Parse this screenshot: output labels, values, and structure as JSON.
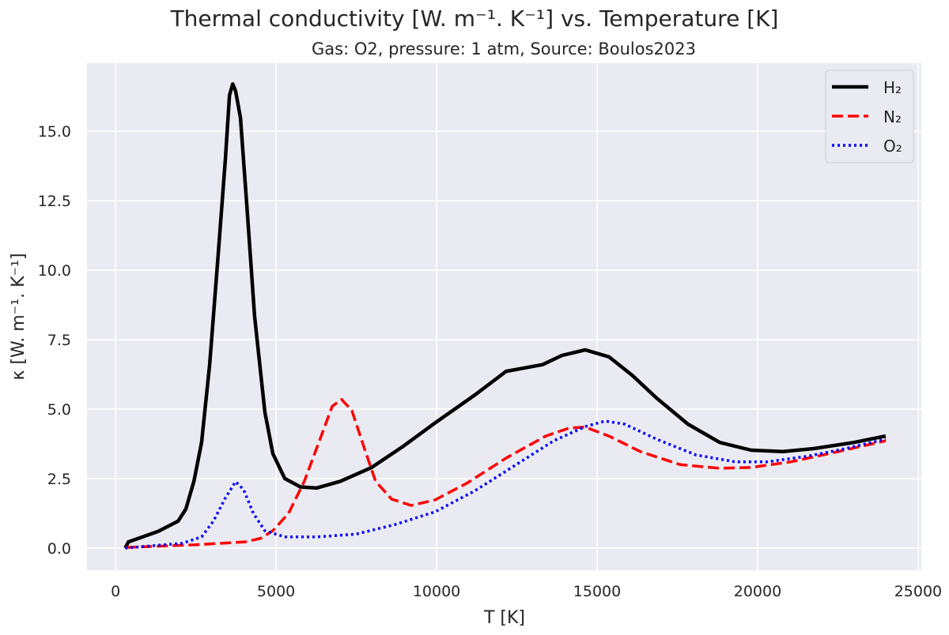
{
  "chart_data": {
    "type": "line",
    "title": "Thermal conductivity [W. m⁻¹. K⁻¹] vs. Temperature [K]",
    "subtitle": "Gas: O2, pressure: 1 atm, Source: Boulos2023",
    "xlabel": "T [K]",
    "ylabel": "κ [W. m⁻¹. K⁻¹]",
    "xlim": [
      -890,
      25100
    ],
    "ylim": [
      -0.8,
      17.45
    ],
    "xticks": [
      0,
      5000,
      10000,
      15000,
      20000,
      25000
    ],
    "xtick_labels": [
      "0",
      "5000",
      "10000",
      "15000",
      "20000",
      "25000"
    ],
    "yticks": [
      0,
      2.5,
      5,
      7.5,
      10,
      12.5,
      15
    ],
    "ytick_labels": [
      "0.0",
      "2.5",
      "5.0",
      "7.5",
      "10.0",
      "12.5",
      "15.0"
    ],
    "grid": true,
    "legend_position": "top-right",
    "background": "#eaeaf2",
    "series": [
      {
        "name": "H₂",
        "color": "#000000",
        "style": "solid",
        "x": [
          300,
          400,
          1330,
          1950,
          2190,
          2440,
          2680,
          2930,
          3180,
          3420,
          3550,
          3650,
          3740,
          3890,
          4090,
          4330,
          4650,
          4900,
          5270,
          5760,
          6260,
          7000,
          7980,
          8960,
          9950,
          11180,
          12170,
          13300,
          13900,
          14630,
          15370,
          16110,
          16850,
          17830,
          18820,
          19800,
          20790,
          21770,
          23000,
          23990
        ],
        "y": [
          0,
          0.22,
          0.6,
          0.97,
          1.4,
          2.4,
          3.8,
          6.6,
          10.3,
          14.0,
          16.3,
          16.7,
          16.45,
          15.5,
          12.3,
          8.35,
          4.9,
          3.4,
          2.5,
          2.2,
          2.16,
          2.4,
          2.9,
          3.66,
          4.5,
          5.5,
          6.36,
          6.6,
          6.93,
          7.13,
          6.88,
          6.2,
          5.4,
          4.46,
          3.8,
          3.52,
          3.47,
          3.58,
          3.8,
          4.03
        ]
      },
      {
        "name": "N₂",
        "color": "#ff0000",
        "style": "dashed",
        "x": [
          300,
          2560,
          4040,
          4530,
          4900,
          5390,
          5880,
          6380,
          6750,
          7040,
          7360,
          7730,
          8100,
          8600,
          9210,
          9950,
          10940,
          12170,
          13400,
          14140,
          14630,
          15370,
          16350,
          17590,
          18820,
          19800,
          21030,
          22510,
          23990
        ],
        "y": [
          0.02,
          0.12,
          0.22,
          0.35,
          0.62,
          1.25,
          2.4,
          3.95,
          5.1,
          5.35,
          4.95,
          3.66,
          2.4,
          1.76,
          1.53,
          1.73,
          2.33,
          3.24,
          4.03,
          4.32,
          4.35,
          4.03,
          3.47,
          3.0,
          2.87,
          2.9,
          3.1,
          3.47,
          3.86
        ]
      },
      {
        "name": "O₂",
        "color": "#0000ff",
        "style": "dotted",
        "x": [
          300,
          2070,
          2680,
          3050,
          3420,
          3740,
          3990,
          4290,
          4650,
          5270,
          6260,
          7490,
          8720,
          9950,
          11180,
          12410,
          13650,
          14630,
          15250,
          15860,
          16850,
          18080,
          19310,
          20300,
          21530,
          22760,
          23990
        ],
        "y": [
          0,
          0.17,
          0.4,
          0.97,
          1.8,
          2.39,
          2.1,
          1.25,
          0.62,
          0.4,
          0.4,
          0.5,
          0.85,
          1.3,
          2.05,
          2.95,
          3.86,
          4.37,
          4.57,
          4.46,
          3.92,
          3.35,
          3.1,
          3.1,
          3.3,
          3.58,
          3.92
        ]
      }
    ]
  }
}
